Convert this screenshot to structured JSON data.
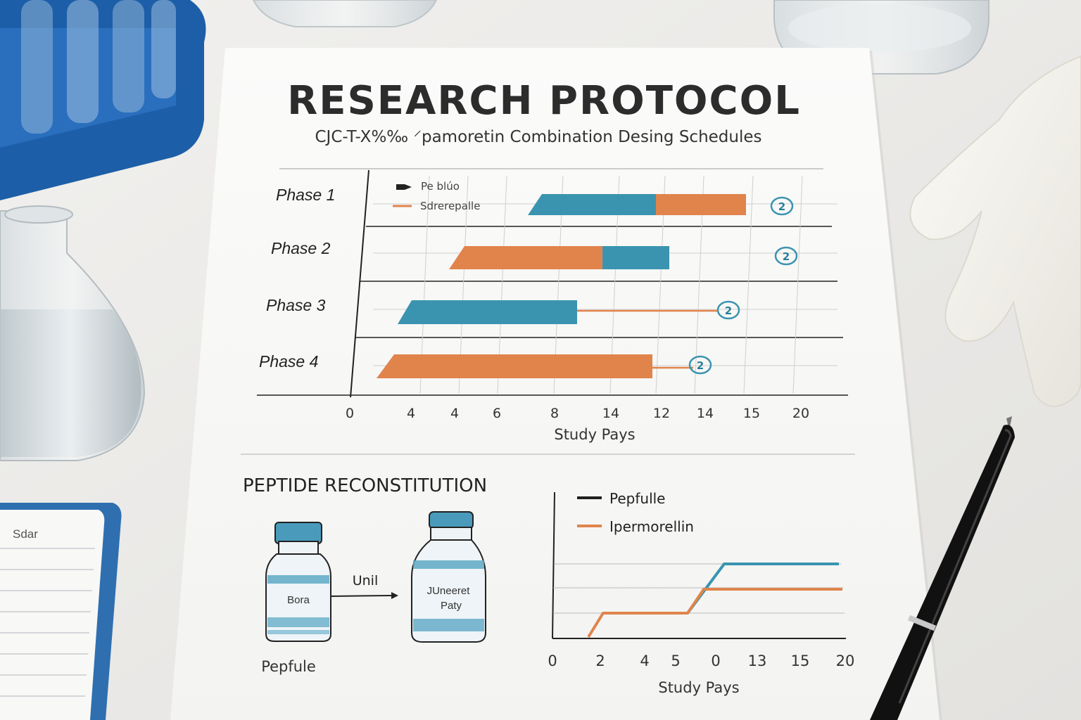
{
  "document": {
    "title": "RESEARCH PROTOCOL",
    "subtitle": "CJC-T-X%‰ ⸍pamoretin Combination Desing Schedules"
  },
  "gantt": {
    "legend": [
      {
        "label": "Pe blúo",
        "color": "#222222"
      },
      {
        "label": "Sdrerepalle",
        "color": "#e0844c"
      }
    ],
    "phases": [
      {
        "label": "Phase 1",
        "marker": "2"
      },
      {
        "label": "Phase 2",
        "marker": "2"
      },
      {
        "label": "Phase 3",
        "marker": "2"
      },
      {
        "label": "Phase 4",
        "marker": "2"
      }
    ],
    "x_ticks": [
      "0",
      "4",
      "4",
      "6",
      "8",
      "14",
      "12",
      "14",
      "15",
      "20"
    ],
    "xlabel": "Study Pays"
  },
  "reconstitution": {
    "heading": "PEPTIDE RECONSTITUTION",
    "vial1_label": "Bora",
    "vial2_label_line1": "JUneeret",
    "vial2_label_line2": "Paty",
    "arrow_label": "Unil",
    "caption": "Pepfule"
  },
  "line_chart": {
    "legend": [
      {
        "label": "Pepfulle",
        "color": "#1f1f1f"
      },
      {
        "label": "Ipermorellin",
        "color": "#e0844c"
      }
    ],
    "x_ticks": [
      "0",
      "2",
      "4",
      "5",
      "0",
      "13",
      "15",
      "20"
    ],
    "xlabel": "Study Pays"
  },
  "notepad": {
    "header": "Sdar"
  },
  "colors": {
    "teal": "#3a94b0",
    "orange": "#e0844c",
    "tray_blue": "#1d5ea8"
  }
}
